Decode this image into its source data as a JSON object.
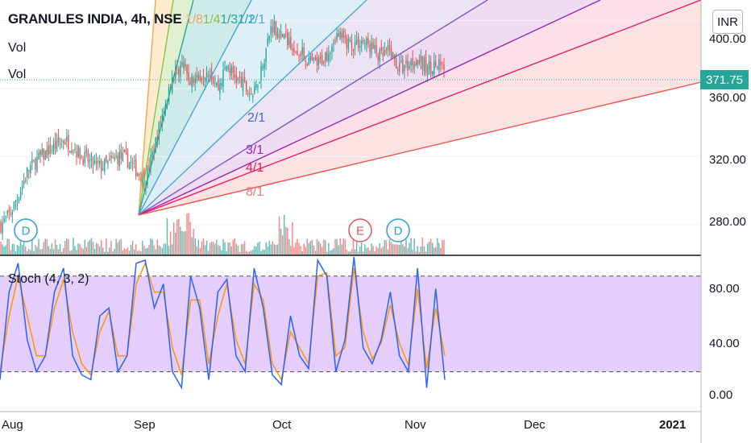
{
  "header": {
    "symbol": "GRANULES INDIA, 4h, NSE",
    "fan_ratio_1": "1/8",
    "fan_ratio_2": "1/4",
    "fan_ratio_3": "1/3",
    "fan_ratio_4": "1/2"
  },
  "legend": {
    "vol1": "Vol",
    "vol2": "Vol"
  },
  "currency": "INR",
  "last_price": "371.75",
  "price_axis": [
    "400.00",
    "360.00",
    "320.00",
    "280.00"
  ],
  "stoch_axis": [
    "80.00",
    "40.00",
    "0.00"
  ],
  "time_axis": [
    "Aug",
    "Sep",
    "Oct",
    "Nov",
    "Dec",
    "2021"
  ],
  "stoch_label": "Stoch (4, 3, 2)",
  "events": [
    {
      "letter": "D",
      "type": "dividend"
    },
    {
      "letter": "E",
      "type": "earnings"
    },
    {
      "letter": "D",
      "type": "dividend"
    }
  ],
  "gann_fan": {
    "labels": [
      "1/1",
      "2/1",
      "3/1",
      "4/1",
      "8/1"
    ],
    "colors": {
      "r1_8": "#f0a55a",
      "r1_4": "#8bc34a",
      "r1_3": "#26a69a",
      "r1_2": "#4ba6d8",
      "r1_1": "#4ba6d8",
      "r2_1": "#7e57c2",
      "r3_1": "#9c27b0",
      "r4_1": "#e91e63",
      "r8_1": "#ef5350"
    }
  },
  "colors": {
    "up": "#26a69a",
    "down": "#ef5350",
    "stoch_k": "#2962ff",
    "stoch_d": "#ff9800",
    "stoch_band": "#e1c6fa"
  },
  "chart_data": {
    "type": "candlestick",
    "title": "GRANULES INDIA, 4h, NSE",
    "ylim": [
      262,
      412
    ],
    "last_price": 371.75,
    "candles_close_path": [
      [
        0,
        280
      ],
      [
        2,
        286
      ],
      [
        4,
        298
      ],
      [
        6,
        312
      ],
      [
        8,
        318
      ],
      [
        10,
        322
      ],
      [
        12,
        326
      ],
      [
        14,
        330
      ],
      [
        16,
        326
      ],
      [
        18,
        320
      ],
      [
        20,
        316
      ],
      [
        22,
        314
      ],
      [
        24,
        316
      ],
      [
        26,
        320
      ],
      [
        28,
        318
      ],
      [
        30,
        312
      ],
      [
        32,
        306
      ],
      [
        34,
        326
      ],
      [
        36,
        348
      ],
      [
        38,
        368
      ],
      [
        40,
        374
      ],
      [
        42,
        364
      ],
      [
        44,
        368
      ],
      [
        46,
        372
      ],
      [
        48,
        360
      ],
      [
        50,
        374
      ],
      [
        52,
        366
      ],
      [
        54,
        360
      ],
      [
        56,
        356
      ],
      [
        58,
        376
      ],
      [
        60,
        398
      ],
      [
        62,
        392
      ],
      [
        64,
        388
      ],
      [
        66,
        382
      ],
      [
        68,
        376
      ],
      [
        70,
        374
      ],
      [
        72,
        380
      ],
      [
        74,
        392
      ],
      [
        76,
        388
      ],
      [
        78,
        386
      ],
      [
        80,
        388
      ],
      [
        82,
        384
      ],
      [
        84,
        378
      ],
      [
        86,
        382
      ],
      [
        88,
        372
      ],
      [
        90,
        374
      ],
      [
        92,
        378
      ],
      [
        94,
        372
      ],
      [
        96,
        374
      ],
      [
        98,
        371.75
      ]
    ],
    "stochastic": {
      "k": [
        15,
        70,
        88,
        40,
        20,
        30,
        70,
        85,
        30,
        18,
        15,
        55,
        60,
        20,
        30,
        88,
        90,
        60,
        75,
        20,
        10,
        80,
        60,
        15,
        70,
        78,
        30,
        20,
        85,
        60,
        18,
        12,
        55,
        30,
        22,
        90,
        80,
        20,
        40,
        92,
        35,
        25,
        40,
        70,
        30,
        20,
        85,
        10,
        72,
        15
      ],
      "d": [
        20,
        55,
        80,
        55,
        30,
        30,
        60,
        78,
        45,
        25,
        18,
        45,
        58,
        30,
        30,
        75,
        88,
        70,
        70,
        35,
        18,
        65,
        65,
        25,
        55,
        75,
        40,
        25,
        75,
        65,
        25,
        15,
        45,
        35,
        25,
        80,
        82,
        30,
        35,
        85,
        45,
        28,
        38,
        62,
        38,
        24,
        72,
        22,
        60,
        30
      ],
      "upper": 80,
      "lower": 20,
      "ylim": [
        -5,
        92
      ]
    }
  }
}
